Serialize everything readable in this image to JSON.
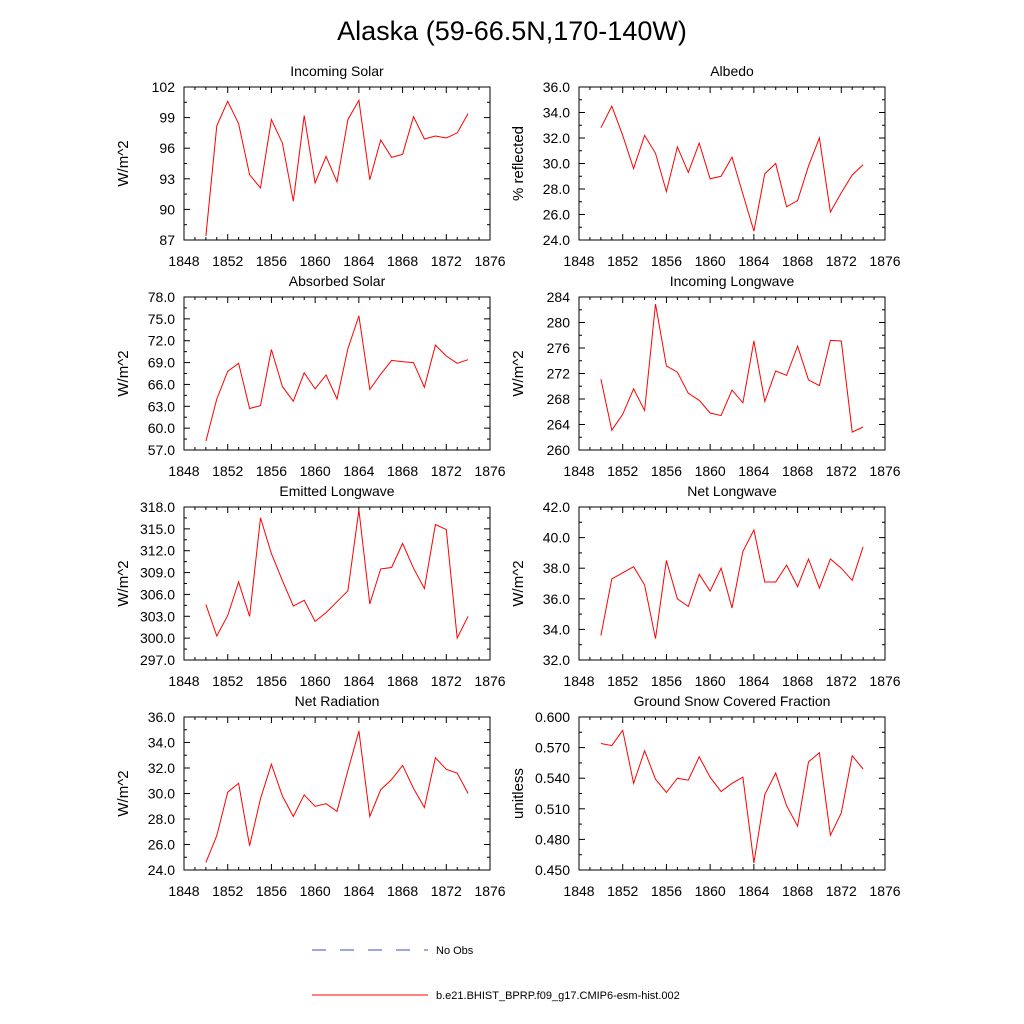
{
  "figure_title": "Alaska (59-66.5N,170-140W)",
  "colors": {
    "model_line": "#ff0000",
    "obs_line": "#3b4cc0",
    "axis": "#000000"
  },
  "legend": {
    "obs_label": "No Obs",
    "model_label": "b.e21.BHIST_BPRP.f09_g17.CMIP6-esm-hist.002"
  },
  "chart_data": [
    {
      "type": "line",
      "title": "Incoming Solar",
      "ylabel": "W/m^2",
      "xlim": [
        1848,
        1876
      ],
      "xticks": [
        "1848",
        "1852",
        "1856",
        "1860",
        "1864",
        "1868",
        "1872",
        "1876"
      ],
      "ylim": [
        87,
        102
      ],
      "yticks": [
        "87",
        "90",
        "93",
        "96",
        "99",
        "102"
      ],
      "series": [
        {
          "name": "b.e21.BHIST_BPRP.f09_g17.CMIP6-esm-hist.002",
          "x": [
            1850,
            1851,
            1852,
            1853,
            1854,
            1855,
            1856,
            1857,
            1858,
            1859,
            1860,
            1861,
            1862,
            1863,
            1864,
            1865,
            1866,
            1867,
            1868,
            1869,
            1870,
            1871,
            1872,
            1873,
            1874
          ],
          "values": [
            87.4,
            98.2,
            100.6,
            98.4,
            93.4,
            92.1,
            98.8,
            96.5,
            90.8,
            99.2,
            92.6,
            95.2,
            92.7,
            98.8,
            100.7,
            92.9,
            96.8,
            95.1,
            95.4,
            99.1,
            96.9,
            97.2,
            97.0,
            97.5,
            99.4
          ]
        }
      ]
    },
    {
      "type": "line",
      "title": "Albedo",
      "ylabel": "% reflected",
      "xlim": [
        1848,
        1876
      ],
      "xticks": [
        "1848",
        "1852",
        "1856",
        "1860",
        "1864",
        "1868",
        "1872",
        "1876"
      ],
      "ylim": [
        24,
        36
      ],
      "yticks": [
        "24.0",
        "26.0",
        "28.0",
        "30.0",
        "32.0",
        "34.0",
        "36.0"
      ],
      "series": [
        {
          "name": "b.e21.BHIST_BPRP.f09_g17.CMIP6-esm-hist.002",
          "x": [
            1850,
            1851,
            1852,
            1853,
            1854,
            1855,
            1856,
            1857,
            1858,
            1859,
            1860,
            1861,
            1862,
            1863,
            1864,
            1865,
            1866,
            1867,
            1868,
            1869,
            1870,
            1871,
            1872,
            1873,
            1874
          ],
          "values": [
            32.8,
            34.5,
            32.2,
            29.6,
            32.2,
            30.8,
            27.8,
            31.3,
            29.3,
            31.6,
            28.8,
            29.0,
            30.5,
            27.6,
            24.7,
            29.2,
            30.0,
            26.6,
            27.1,
            29.8,
            32.0,
            26.2,
            27.7,
            29.1,
            29.9
          ]
        }
      ]
    },
    {
      "type": "line",
      "title": "Absorbed Solar",
      "ylabel": "W/m^2",
      "xlim": [
        1848,
        1876
      ],
      "xticks": [
        "1848",
        "1852",
        "1856",
        "1860",
        "1864",
        "1868",
        "1872",
        "1876"
      ],
      "ylim": [
        57,
        78
      ],
      "yticks": [
        "57.0",
        "60.0",
        "63.0",
        "66.0",
        "69.0",
        "72.0",
        "75.0",
        "78.0"
      ],
      "series": [
        {
          "name": "b.e21.BHIST_BPRP.f09_g17.CMIP6-esm-hist.002",
          "x": [
            1850,
            1851,
            1852,
            1853,
            1854,
            1855,
            1856,
            1857,
            1858,
            1859,
            1860,
            1861,
            1862,
            1863,
            1864,
            1865,
            1866,
            1867,
            1868,
            1869,
            1870,
            1871,
            1872,
            1873,
            1874
          ],
          "values": [
            58.2,
            64.0,
            67.8,
            68.9,
            62.7,
            63.1,
            70.8,
            65.7,
            63.7,
            67.6,
            65.4,
            67.3,
            64.0,
            70.9,
            75.4,
            65.3,
            67.4,
            69.3,
            69.1,
            69.0,
            65.6,
            71.4,
            69.9,
            68.9,
            69.4
          ]
        }
      ]
    },
    {
      "type": "line",
      "title": "Incoming Longwave",
      "ylabel": "W/m^2",
      "xlim": [
        1848,
        1876
      ],
      "xticks": [
        "1848",
        "1852",
        "1856",
        "1860",
        "1864",
        "1868",
        "1872",
        "1876"
      ],
      "ylim": [
        260,
        284
      ],
      "yticks": [
        "260",
        "264",
        "268",
        "272",
        "276",
        "280",
        "284"
      ],
      "series": [
        {
          "name": "b.e21.BHIST_BPRP.f09_g17.CMIP6-esm-hist.002",
          "x": [
            1850,
            1851,
            1852,
            1853,
            1854,
            1855,
            1856,
            1857,
            1858,
            1859,
            1860,
            1861,
            1862,
            1863,
            1864,
            1865,
            1866,
            1867,
            1868,
            1869,
            1870,
            1871,
            1872,
            1873,
            1874
          ],
          "values": [
            271.1,
            263.1,
            265.6,
            269.6,
            266.2,
            282.9,
            273.2,
            272.2,
            268.9,
            267.8,
            265.8,
            265.4,
            269.4,
            267.4,
            277.1,
            267.6,
            272.4,
            271.7,
            276.3,
            271.0,
            270.1,
            277.2,
            277.1,
            262.8,
            263.6
          ]
        }
      ]
    },
    {
      "type": "line",
      "title": "Emitted Longwave",
      "ylabel": "W/m^2",
      "xlim": [
        1848,
        1876
      ],
      "xticks": [
        "1848",
        "1852",
        "1856",
        "1860",
        "1864",
        "1868",
        "1872",
        "1876"
      ],
      "ylim": [
        297,
        318
      ],
      "yticks": [
        "297.0",
        "300.0",
        "303.0",
        "306.0",
        "309.0",
        "312.0",
        "315.0",
        "318.0"
      ],
      "series": [
        {
          "name": "b.e21.BHIST_BPRP.f09_g17.CMIP6-esm-hist.002",
          "x": [
            1850,
            1851,
            1852,
            1853,
            1854,
            1855,
            1856,
            1857,
            1858,
            1859,
            1860,
            1861,
            1862,
            1863,
            1864,
            1865,
            1866,
            1867,
            1868,
            1869,
            1870,
            1871,
            1872,
            1873,
            1874
          ],
          "values": [
            304.6,
            300.3,
            303.1,
            307.7,
            303.0,
            316.5,
            311.6,
            307.9,
            304.4,
            305.2,
            302.3,
            303.5,
            305.0,
            306.5,
            317.6,
            304.7,
            309.5,
            309.7,
            313.0,
            309.6,
            306.8,
            315.6,
            314.9,
            300.0,
            303.0
          ]
        }
      ]
    },
    {
      "type": "line",
      "title": "Net Longwave",
      "ylabel": "W/m^2",
      "xlim": [
        1848,
        1876
      ],
      "xticks": [
        "1848",
        "1852",
        "1856",
        "1860",
        "1864",
        "1868",
        "1872",
        "1876"
      ],
      "ylim": [
        32,
        42
      ],
      "yticks": [
        "32.0",
        "34.0",
        "36.0",
        "38.0",
        "40.0",
        "42.0"
      ],
      "series": [
        {
          "name": "b.e21.BHIST_BPRP.f09_g17.CMIP6-esm-hist.002",
          "x": [
            1850,
            1851,
            1852,
            1853,
            1854,
            1855,
            1856,
            1857,
            1858,
            1859,
            1860,
            1861,
            1862,
            1863,
            1864,
            1865,
            1866,
            1867,
            1868,
            1869,
            1870,
            1871,
            1872,
            1873,
            1874
          ],
          "values": [
            33.6,
            37.3,
            37.7,
            38.1,
            36.9,
            33.4,
            38.5,
            36.0,
            35.5,
            37.6,
            36.5,
            38.0,
            35.4,
            39.1,
            40.5,
            37.1,
            37.1,
            38.2,
            36.8,
            38.6,
            36.7,
            38.6,
            38.0,
            37.2,
            39.4
          ]
        }
      ]
    },
    {
      "type": "line",
      "title": "Net Radiation",
      "ylabel": "W/m^2",
      "xlim": [
        1848,
        1876
      ],
      "xticks": [
        "1848",
        "1852",
        "1856",
        "1860",
        "1864",
        "1868",
        "1872",
        "1876"
      ],
      "ylim": [
        24,
        36
      ],
      "yticks": [
        "24.0",
        "26.0",
        "28.0",
        "30.0",
        "32.0",
        "34.0",
        "36.0"
      ],
      "series": [
        {
          "name": "b.e21.BHIST_BPRP.f09_g17.CMIP6-esm-hist.002",
          "x": [
            1850,
            1851,
            1852,
            1853,
            1854,
            1855,
            1856,
            1857,
            1858,
            1859,
            1860,
            1861,
            1862,
            1863,
            1864,
            1865,
            1866,
            1867,
            1868,
            1869,
            1870,
            1871,
            1872,
            1873,
            1874
          ],
          "values": [
            24.6,
            26.7,
            30.1,
            30.8,
            25.9,
            29.6,
            32.3,
            29.8,
            28.2,
            29.9,
            29.0,
            29.2,
            28.6,
            31.8,
            34.9,
            28.2,
            30.3,
            31.1,
            32.2,
            30.4,
            28.9,
            32.8,
            31.9,
            31.6,
            30.0
          ]
        }
      ]
    },
    {
      "type": "line",
      "title": "Ground Snow Covered Fraction",
      "ylabel": "unitless",
      "xlim": [
        1848,
        1876
      ],
      "xticks": [
        "1848",
        "1852",
        "1856",
        "1860",
        "1864",
        "1868",
        "1872",
        "1876"
      ],
      "ylim": [
        0.45,
        0.6
      ],
      "yticks": [
        "0.450",
        "0.480",
        "0.510",
        "0.540",
        "0.570",
        "0.600"
      ],
      "series": [
        {
          "name": "b.e21.BHIST_BPRP.f09_g17.CMIP6-esm-hist.002",
          "x": [
            1850,
            1851,
            1852,
            1853,
            1854,
            1855,
            1856,
            1857,
            1858,
            1859,
            1860,
            1861,
            1862,
            1863,
            1864,
            1865,
            1866,
            1867,
            1868,
            1869,
            1870,
            1871,
            1872,
            1873,
            1874
          ],
          "values": [
            0.574,
            0.572,
            0.587,
            0.535,
            0.567,
            0.539,
            0.526,
            0.54,
            0.538,
            0.561,
            0.541,
            0.527,
            0.535,
            0.541,
            0.457,
            0.524,
            0.545,
            0.513,
            0.493,
            0.556,
            0.565,
            0.484,
            0.506,
            0.562,
            0.549
          ]
        }
      ]
    }
  ]
}
